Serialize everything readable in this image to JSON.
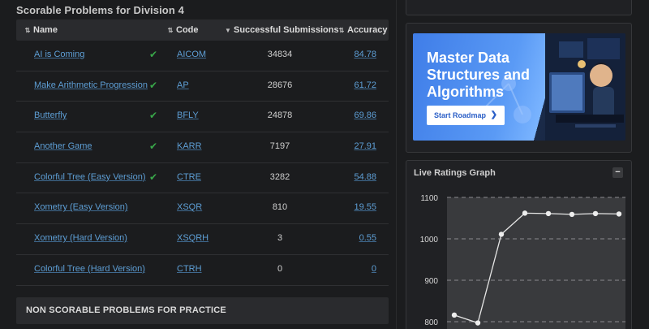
{
  "problems": {
    "title": "Scorable Problems for Division 4",
    "headers": {
      "name": "Name",
      "code": "Code",
      "submissions": "Successful Submissions",
      "accuracy": "Accuracy"
    },
    "rows": [
      {
        "name": "AI is Coming",
        "solved": true,
        "code": "AICOM",
        "submissions": "34834",
        "accuracy": "84.78"
      },
      {
        "name": "Make Arithmetic Progression",
        "solved": true,
        "code": "AP",
        "submissions": "28676",
        "accuracy": "61.72"
      },
      {
        "name": "Butterfly",
        "solved": true,
        "code": "BFLY",
        "submissions": "24878",
        "accuracy": "69.86"
      },
      {
        "name": "Another Game",
        "solved": true,
        "code": "KARR",
        "submissions": "7197",
        "accuracy": "27.91"
      },
      {
        "name": "Colorful Tree (Easy Version)",
        "solved": true,
        "code": "CTRE",
        "submissions": "3282",
        "accuracy": "54.88"
      },
      {
        "name": "Xometry (Easy Version)",
        "solved": false,
        "code": "XSQR",
        "submissions": "810",
        "accuracy": "19.55"
      },
      {
        "name": "Xometry (Hard Version)",
        "solved": false,
        "code": "XSQRH",
        "submissions": "3",
        "accuracy": "0.55"
      },
      {
        "name": "Colorful Tree (Hard Version)",
        "solved": false,
        "code": "CTRH",
        "submissions": "0",
        "accuracy": "0"
      }
    ],
    "non_scorable_title": "NON SCORABLE PROBLEMS FOR PRACTICE"
  },
  "ad": {
    "title": "Master Data Structures and Algorithms",
    "button": "Start Roadmap",
    "brand_blue": "#3f7de8"
  },
  "graph": {
    "title": "Live Ratings Graph",
    "collapse_label": "−",
    "y_ticks": [
      "1100",
      "1000",
      "900",
      "800"
    ],
    "y_range": [
      800,
      1100
    ],
    "points": [
      816,
      797,
      1011,
      1062,
      1061,
      1059,
      1061,
      1060
    ]
  },
  "colors": {
    "link": "#5e9fd6",
    "check": "#39a84a",
    "background": "#1b1c1e"
  }
}
